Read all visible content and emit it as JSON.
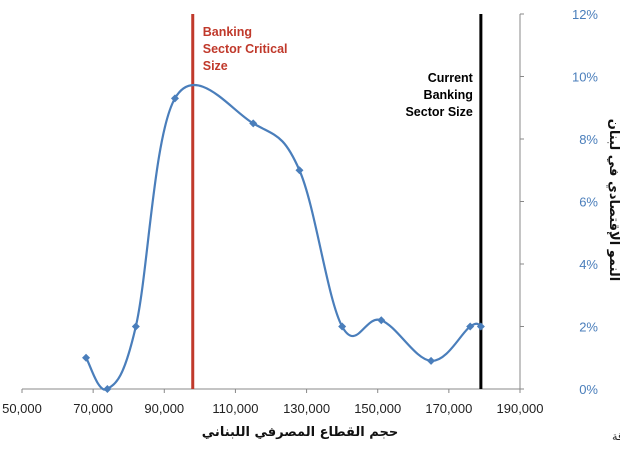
{
  "chart_data": {
    "type": "line",
    "title": "",
    "xlabel": "حجم القطاع المصرفي اللبناني",
    "ylabel": "النمو الإقتصادي في لبنان",
    "xlim": [
      50000,
      190000
    ],
    "ylim": [
      0,
      12
    ],
    "y_axis_position": "right",
    "y_unit": "%",
    "grid": false,
    "legend": "none",
    "x_ticks": [
      "50,000",
      "70,000",
      "90,000",
      "110,000",
      "130,000",
      "150,000",
      "170,000",
      "190,000"
    ],
    "y_ticks": [
      "0%",
      "2%",
      "4%",
      "6%",
      "8%",
      "10%",
      "12%"
    ],
    "series": [
      {
        "x": [
          68000,
          74000,
          82000,
          93000,
          115000,
          128000,
          140000,
          151000,
          165000,
          176000,
          179000
        ],
        "y": [
          1.0,
          0.0,
          2.0,
          9.3,
          8.5,
          7.0,
          2.0,
          2.2,
          0.9,
          2.0,
          2.0
        ],
        "color": "#4a7ebb"
      }
    ],
    "vertical_lines": [
      {
        "x": 98000,
        "label_lines": [
          "Banking",
          "Sector Critical",
          "Size"
        ],
        "color": "#c0392b"
      },
      {
        "x": 179000,
        "label_lines": [
          "Current",
          "Banking",
          "Sector Size"
        ],
        "color": "#000000"
      }
    ],
    "annotations": [
      "د. جاسم عجاقة"
    ]
  }
}
